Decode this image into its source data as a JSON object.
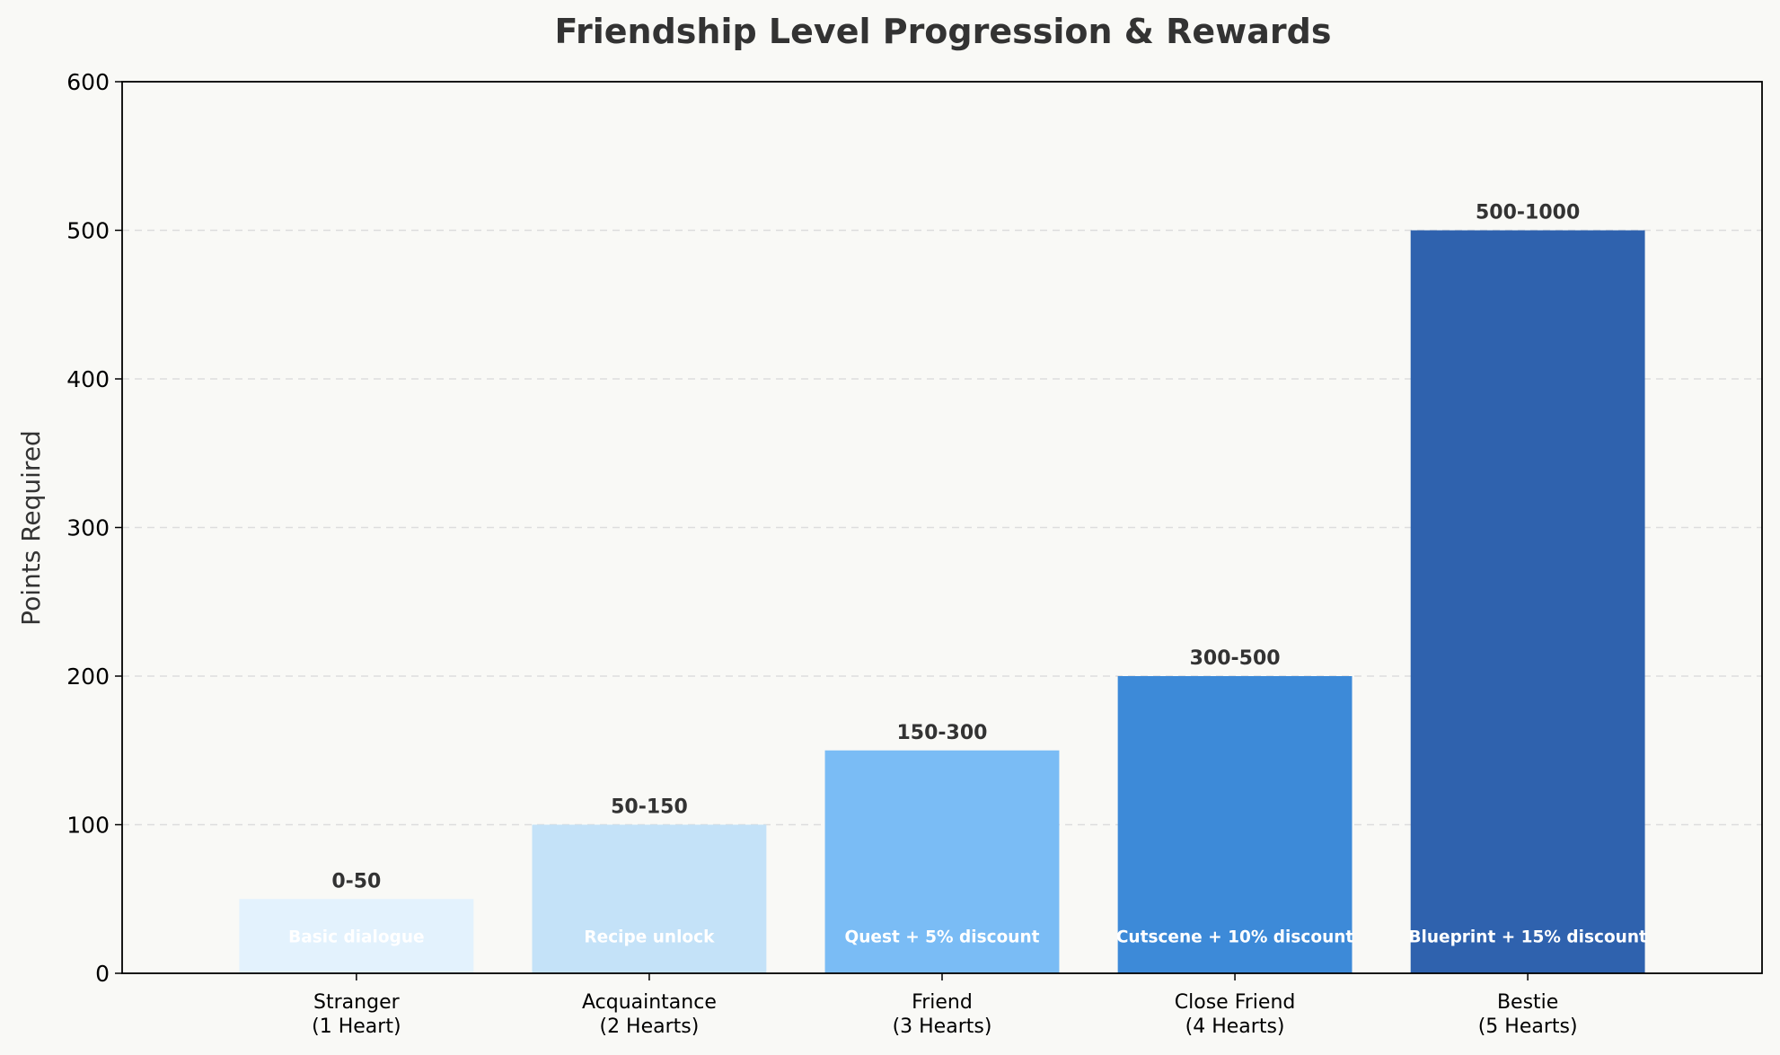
{
  "chart_data": {
    "type": "bar",
    "title": "Friendship Level Progression & Rewards",
    "xlabel": "",
    "ylabel": "Points Required",
    "ylim": [
      0,
      600
    ],
    "yticks": [
      0,
      100,
      200,
      300,
      400,
      500,
      600
    ],
    "grid": "y-dashed",
    "categories": [
      [
        "Stranger",
        "(1 Heart)"
      ],
      [
        "Acquaintance",
        "(2 Hearts)"
      ],
      [
        "Friend",
        "(3 Hearts)"
      ],
      [
        "Close Friend",
        "(4 Hearts)"
      ],
      [
        "Bestie",
        "(5 Hearts)"
      ]
    ],
    "values": [
      50,
      100,
      150,
      200,
      500
    ],
    "value_labels": [
      "0-50",
      "50-150",
      "150-300",
      "300-500",
      "500-1000"
    ],
    "rewards": [
      "Basic dialogue",
      "Recipe unlock",
      "Quest + 5% discount",
      "Cutscene + 10% discount",
      "Blueprint + 15% discount"
    ],
    "colors": [
      "#e3f2fd",
      "#c4e2f8",
      "#7abcf5",
      "#3d8ad8",
      "#2f62ae"
    ]
  }
}
